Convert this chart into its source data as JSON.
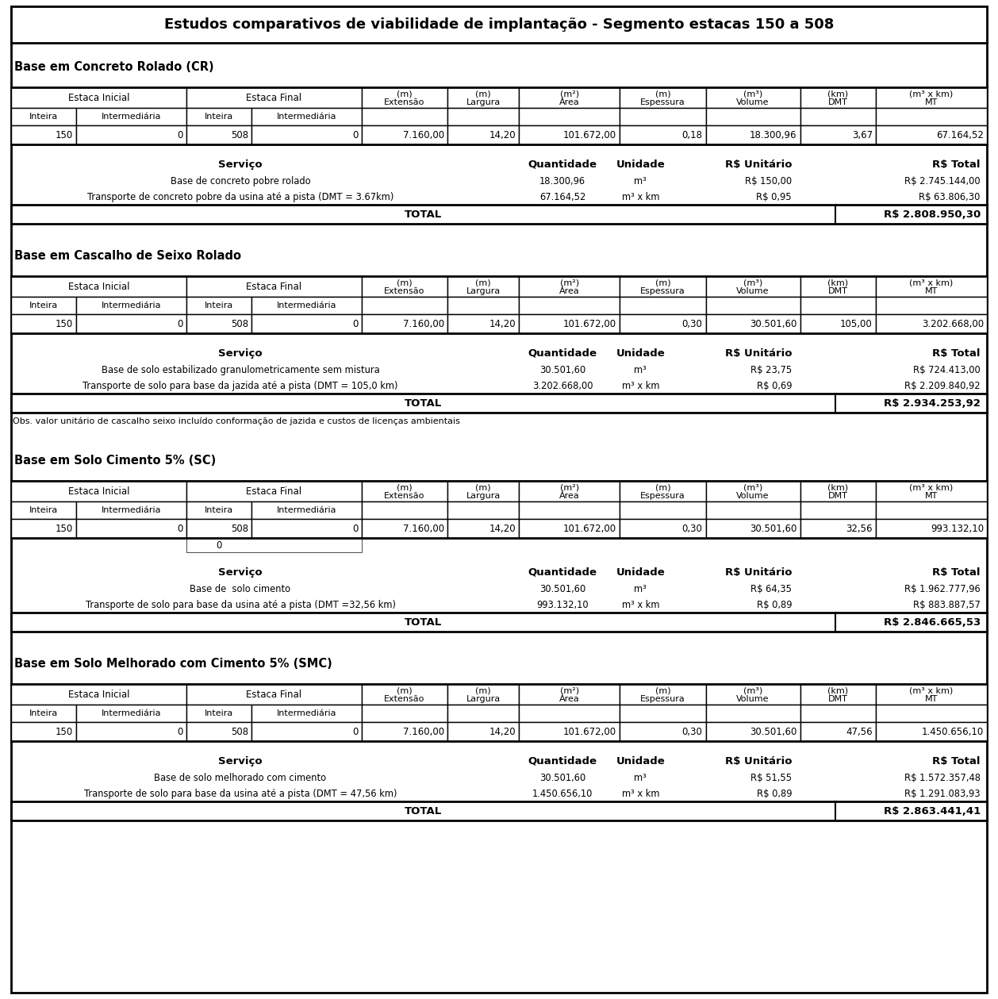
{
  "title": "Estudos comparativos de viabilidade de implantação - Segmento estacas 150 a 508",
  "sections": [
    {
      "section_title": "Base em Concreto Rolado (CR)",
      "table1_data": [
        "150",
        "0",
        "508",
        "0",
        "7.160,00",
        "14,20",
        "101.672,00",
        "0,18",
        "18.300,96",
        "3,67",
        "67.164,52"
      ],
      "extra_zero": false,
      "services": [
        [
          "Base de concreto pobre rolado",
          "18.300,96",
          "m³",
          "R$ 150,00",
          "R$ 2.745.144,00"
        ],
        [
          "Transporte de concreto pobre da usina até a pista (DMT = 3.67km)",
          "67.164,52",
          "m³ x km",
          "R$ 0,95",
          "R$ 63.806,30"
        ]
      ],
      "total": "R$ 2.808.950,30",
      "obs": ""
    },
    {
      "section_title": "Base em Cascalho de Seixo Rolado",
      "table1_data": [
        "150",
        "0",
        "508",
        "0",
        "7.160,00",
        "14,20",
        "101.672,00",
        "0,30",
        "30.501,60",
        "105,00",
        "3.202.668,00"
      ],
      "extra_zero": false,
      "services": [
        [
          "Base de solo estabilizado granulometricamente sem mistura",
          "30.501,60",
          "m³",
          "R$ 23,75",
          "R$ 724.413,00"
        ],
        [
          "Transporte de solo para base da jazida até a pista (DMT = 105,0 km)",
          "3.202.668,00",
          "m³ x km",
          "R$ 0,69",
          "R$ 2.209.840,92"
        ]
      ],
      "total": "R$ 2.934.253,92",
      "obs": "Obs. valor unitário de cascalho seixo incluído conformação de jazida e custos de licenças ambientais"
    },
    {
      "section_title": "Base em Solo Cimento 5% (SC)",
      "table1_data": [
        "150",
        "0",
        "508",
        "0",
        "7.160,00",
        "14,20",
        "101.672,00",
        "0,30",
        "30.501,60",
        "32,56",
        "993.132,10"
      ],
      "extra_zero": true,
      "services": [
        [
          "Base de  solo cimento",
          "30.501,60",
          "m³",
          "R$ 64,35",
          "R$ 1.962.777,96"
        ],
        [
          "Transporte de solo para base da usina até a pista (DMT =32,56 km)",
          "993.132,10",
          "m³ x km",
          "R$ 0,89",
          "R$ 883.887,57"
        ]
      ],
      "total": "R$ 2.846.665,53",
      "obs": ""
    },
    {
      "section_title": "Base em Solo Melhorado com Cimento 5% (SMC)",
      "table1_data": [
        "150",
        "0",
        "508",
        "0",
        "7.160,00",
        "14,20",
        "101.672,00",
        "0,30",
        "30.501,60",
        "47,56",
        "1.450.656,10"
      ],
      "extra_zero": false,
      "services": [
        [
          "Base de solo melhorado com cimento",
          "30.501,60",
          "m³",
          "R$ 51,55",
          "R$ 1.572.357,48"
        ],
        [
          "Transporte de solo para base da usina até a pista (DMT = 47,56 km)",
          "1.450.656,10",
          "m³ x km",
          "R$ 0,89",
          "R$ 1.291.083,93"
        ]
      ],
      "total": "R$ 2.863.441,41",
      "obs": ""
    }
  ],
  "col_headers_row1": [
    "Estaca Inicial",
    "Estaca Final",
    "Extensão\n(m)",
    "Largura\n(m)",
    "Área\n(m²)",
    "Espessura\n(m)",
    "Volume\n(m³)",
    "DMT\n(km)",
    "MT\n(m³ x km)"
  ],
  "col_headers_row2": [
    "Inteira",
    "Intermediária",
    "Inteira",
    "Intermediária"
  ]
}
